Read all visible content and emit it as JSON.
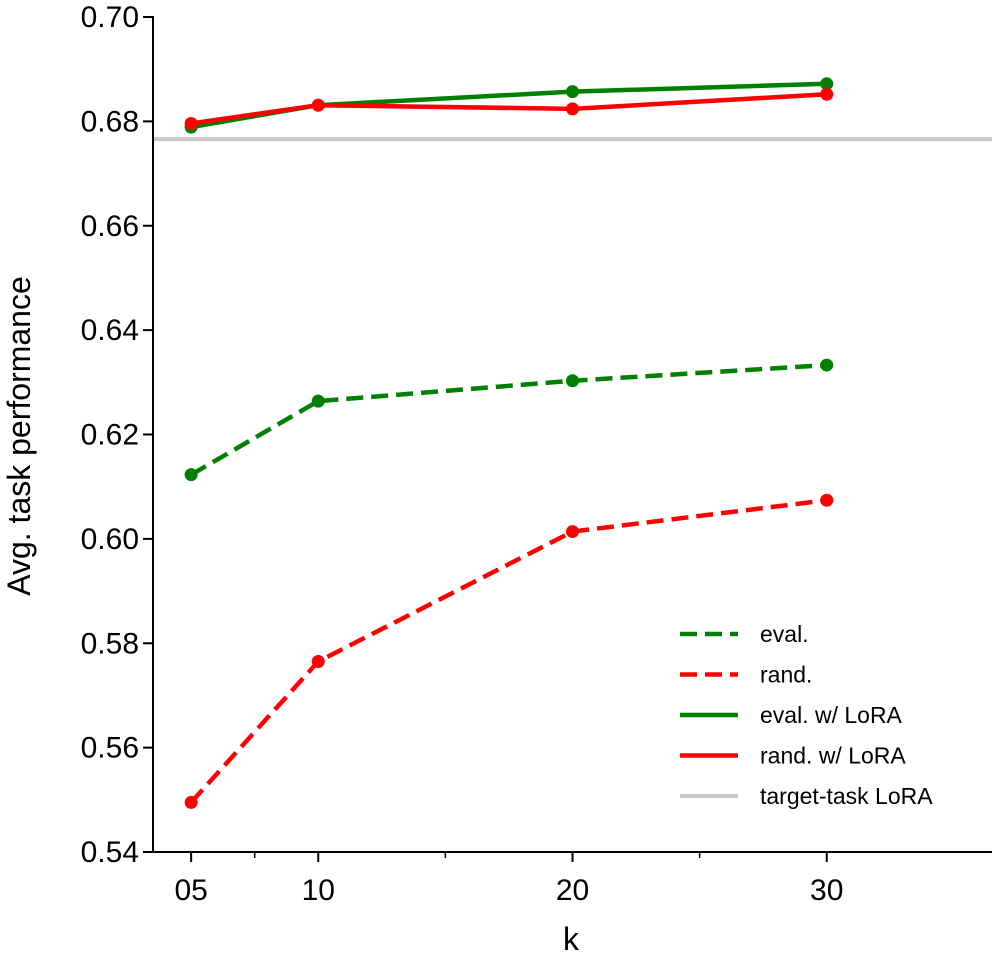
{
  "chart_data": {
    "type": "line",
    "xlabel": "k",
    "ylabel": "Avg. task performance",
    "ylim": [
      0.54,
      0.7
    ],
    "x": [
      5,
      10,
      20,
      30
    ],
    "x_tick_labels": [
      "05",
      "10",
      "20",
      "30"
    ],
    "x_minor_ticks": [
      7.5,
      15,
      25
    ],
    "y_ticks": [
      0.54,
      0.56,
      0.58,
      0.6,
      0.62,
      0.64,
      0.66,
      0.68,
      0.7
    ],
    "y_tick_labels": [
      "0.54",
      "0.56",
      "0.58",
      "0.60",
      "0.62",
      "0.64",
      "0.66",
      "0.68",
      "0.70"
    ],
    "legend_position": "bottom-right",
    "series": [
      {
        "name": "eval.",
        "color": "#008000",
        "style": "dashed",
        "markers": true,
        "values": [
          0.6123,
          0.6264,
          0.6303,
          0.6333
        ]
      },
      {
        "name": "rand.",
        "color": "#ff0000",
        "style": "dashed",
        "markers": true,
        "values": [
          0.5495,
          0.5765,
          0.6014,
          0.6074
        ]
      },
      {
        "name": "eval. w/ LoRA",
        "color": "#008000",
        "style": "solid",
        "markers": true,
        "values": [
          0.6789,
          0.6831,
          0.6857,
          0.6872
        ]
      },
      {
        "name": "rand. w/ LoRA",
        "color": "#ff0000",
        "style": "solid",
        "markers": true,
        "values": [
          0.6796,
          0.6831,
          0.6824,
          0.6852
        ]
      },
      {
        "name": "target-task LoRA",
        "color": "#c8c8c8",
        "style": "hline",
        "markers": false,
        "value": 0.6766
      }
    ]
  }
}
